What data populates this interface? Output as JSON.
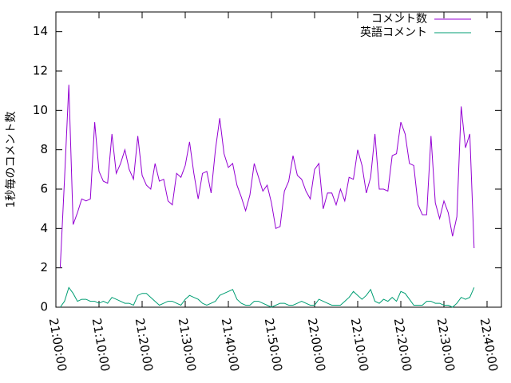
{
  "chart_data": {
    "type": "line",
    "ylabel": "1秒毎のコメント数",
    "x": [
      "21:01:00",
      "21:02:00",
      "21:03:00",
      "21:04:00",
      "21:05:00",
      "21:06:00",
      "21:07:00",
      "21:08:00",
      "21:09:00",
      "21:10:00",
      "21:11:00",
      "21:12:00",
      "21:13:00",
      "21:14:00",
      "21:15:00",
      "21:16:00",
      "21:17:00",
      "21:18:00",
      "21:19:00",
      "21:20:00",
      "21:21:00",
      "21:22:00",
      "21:23:00",
      "21:24:00",
      "21:25:00",
      "21:26:00",
      "21:27:00",
      "21:28:00",
      "21:29:00",
      "21:30:00",
      "21:31:00",
      "21:32:00",
      "21:33:00",
      "21:34:00",
      "21:35:00",
      "21:36:00",
      "21:37:00",
      "21:38:00",
      "21:39:00",
      "21:40:00",
      "21:41:00",
      "21:42:00",
      "21:43:00",
      "21:44:00",
      "21:45:00",
      "21:46:00",
      "21:47:00",
      "21:48:00",
      "21:49:00",
      "21:50:00",
      "21:51:00",
      "21:52:00",
      "21:53:00",
      "21:54:00",
      "21:55:00",
      "21:56:00",
      "21:57:00",
      "21:58:00",
      "21:59:00",
      "22:00:00",
      "22:01:00",
      "22:02:00",
      "22:03:00",
      "22:04:00",
      "22:05:00",
      "22:06:00",
      "22:07:00",
      "22:08:00",
      "22:09:00",
      "22:10:00",
      "22:11:00",
      "22:12:00",
      "22:13:00",
      "22:14:00",
      "22:15:00",
      "22:16:00",
      "22:17:00",
      "22:18:00",
      "22:19:00",
      "22:20:00",
      "22:21:00",
      "22:22:00",
      "22:23:00",
      "22:24:00",
      "22:25:00",
      "22:26:00",
      "22:27:00",
      "22:28:00",
      "22:29:00",
      "22:30:00",
      "22:31:00",
      "22:32:00",
      "22:33:00",
      "22:34:00",
      "22:35:00",
      "22:36:00",
      "22:37:00"
    ],
    "series": [
      {
        "name": "コメント数",
        "color": "#9400d3",
        "values": [
          2.0,
          6.5,
          11.3,
          4.2,
          4.8,
          5.5,
          5.4,
          5.5,
          9.4,
          6.9,
          6.4,
          6.3,
          8.8,
          6.8,
          7.3,
          8.0,
          7.0,
          6.5,
          8.7,
          6.7,
          6.2,
          6.0,
          7.3,
          6.4,
          6.5,
          5.4,
          5.2,
          6.8,
          6.6,
          7.2,
          8.4,
          6.8,
          5.5,
          6.8,
          6.9,
          5.8,
          8.0,
          9.6,
          7.8,
          7.1,
          7.3,
          6.2,
          5.6,
          4.9,
          5.7,
          7.3,
          6.6,
          5.9,
          6.2,
          5.3,
          4.0,
          4.1,
          5.9,
          6.4,
          7.7,
          6.7,
          6.5,
          5.9,
          5.5,
          7.0,
          7.3,
          5.0,
          5.8,
          5.8,
          5.2,
          6.0,
          5.4,
          6.6,
          6.5,
          8.0,
          7.2,
          5.8,
          6.6,
          8.8,
          6.0,
          6.0,
          5.9,
          7.7,
          7.8,
          9.4,
          8.8,
          7.3,
          7.2,
          5.2,
          4.7,
          4.7,
          8.7,
          5.3,
          4.5,
          5.4,
          4.8,
          3.6,
          4.6,
          10.2,
          8.1,
          8.8,
          3.0
        ]
      },
      {
        "name": "英語コメント",
        "color": "#009e73",
        "values": [
          0.0,
          0.3,
          1.0,
          0.7,
          0.3,
          0.4,
          0.4,
          0.3,
          0.3,
          0.2,
          0.3,
          0.2,
          0.5,
          0.4,
          0.3,
          0.2,
          0.2,
          0.1,
          0.6,
          0.7,
          0.7,
          0.5,
          0.3,
          0.1,
          0.2,
          0.3,
          0.3,
          0.2,
          0.1,
          0.4,
          0.6,
          0.5,
          0.4,
          0.2,
          0.1,
          0.2,
          0.3,
          0.6,
          0.7,
          0.8,
          0.9,
          0.4,
          0.2,
          0.1,
          0.1,
          0.3,
          0.3,
          0.2,
          0.1,
          0.0,
          0.1,
          0.2,
          0.2,
          0.1,
          0.1,
          0.2,
          0.3,
          0.2,
          0.1,
          0.1,
          0.4,
          0.3,
          0.2,
          0.1,
          0.1,
          0.1,
          0.3,
          0.5,
          0.8,
          0.6,
          0.4,
          0.6,
          0.9,
          0.3,
          0.2,
          0.4,
          0.3,
          0.5,
          0.3,
          0.8,
          0.7,
          0.4,
          0.1,
          0.1,
          0.1,
          0.3,
          0.3,
          0.2,
          0.2,
          0.1,
          0.1,
          0.0,
          0.2,
          0.5,
          0.4,
          0.5,
          1.0
        ]
      }
    ],
    "xlim": [
      "21:00:00",
      "22:43:20"
    ],
    "xticks": [
      "21:00:00",
      "21:10:00",
      "21:20:00",
      "21:30:00",
      "21:40:00",
      "21:50:00",
      "22:00:00",
      "22:10:00",
      "22:20:00",
      "22:30:00",
      "22:40:00"
    ],
    "ylim": [
      0,
      15
    ],
    "yticks": [
      0,
      2,
      4,
      6,
      8,
      10,
      12,
      14
    ],
    "legend": "top-right"
  }
}
